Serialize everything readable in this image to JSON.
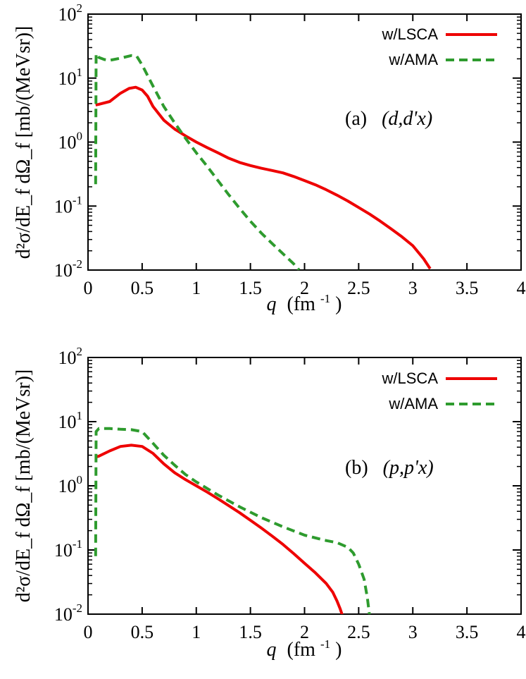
{
  "chart_data": [
    {
      "type": "line",
      "title": "",
      "annotation": {
        "prefix": "(a)",
        "reaction": "(d,d'x)"
      },
      "xlabel": {
        "symbol": "q",
        "unit_pre": "(fm",
        "unit_exp": "-1",
        "unit_post": ")"
      },
      "ylabel": {
        "text": "d²σ/dE_f dΩ_f [mb/(MeVsr)]"
      },
      "xlim": [
        0,
        4
      ],
      "ylim": [
        0.01,
        100
      ],
      "yscale": "log",
      "x_ticks": [
        "0",
        "0.5",
        "1",
        "1.5",
        "2",
        "2.5",
        "3",
        "3.5",
        "4"
      ],
      "x_tick_values": [
        0,
        0.5,
        1,
        1.5,
        2,
        2.5,
        3,
        3.5,
        4
      ],
      "y_ticks": [
        {
          "value": 100,
          "base": "10",
          "exp": "2"
        },
        {
          "value": 10,
          "base": "10",
          "exp": "1"
        },
        {
          "value": 1,
          "base": "10",
          "exp": "0"
        },
        {
          "value": 0.1,
          "base": "10",
          "exp": "-1"
        },
        {
          "value": 0.01,
          "base": "10",
          "exp": "-2"
        }
      ],
      "legend_position": "top-right",
      "grid": false,
      "series": [
        {
          "name": "w/LSCA",
          "color": "#ee0000",
          "style": "solid",
          "x": [
            0.07,
            0.1,
            0.2,
            0.3,
            0.38,
            0.44,
            0.5,
            0.55,
            0.6,
            0.7,
            0.8,
            0.9,
            1.0,
            1.1,
            1.2,
            1.3,
            1.4,
            1.5,
            1.6,
            1.7,
            1.8,
            1.9,
            2.0,
            2.1,
            2.2,
            2.3,
            2.4,
            2.5,
            2.6,
            2.7,
            2.8,
            2.9,
            3.0,
            3.1,
            3.16
          ],
          "y": [
            3.8,
            3.9,
            4.3,
            5.8,
            6.9,
            7.2,
            6.5,
            5.2,
            3.6,
            2.2,
            1.6,
            1.25,
            1.0,
            0.82,
            0.68,
            0.56,
            0.48,
            0.43,
            0.39,
            0.36,
            0.33,
            0.29,
            0.25,
            0.215,
            0.18,
            0.148,
            0.12,
            0.095,
            0.075,
            0.058,
            0.044,
            0.033,
            0.024,
            0.015,
            0.0105
          ]
        },
        {
          "name": "w/AMA",
          "color": "#2e9b2e",
          "style": "dashed",
          "x": [
            0.07,
            0.075,
            0.1,
            0.15,
            0.2,
            0.3,
            0.4,
            0.45,
            0.5,
            0.6,
            0.7,
            0.8,
            0.9,
            1.0,
            1.1,
            1.2,
            1.3,
            1.4,
            1.5,
            1.6,
            1.7,
            1.8,
            1.9,
            1.95
          ],
          "y": [
            0.22,
            24,
            21,
            19.5,
            19,
            20.5,
            22.5,
            22,
            16,
            7.5,
            3.6,
            2.0,
            1.15,
            0.68,
            0.42,
            0.25,
            0.15,
            0.092,
            0.058,
            0.038,
            0.026,
            0.018,
            0.0125,
            0.01
          ]
        }
      ]
    },
    {
      "type": "line",
      "title": "",
      "annotation": {
        "prefix": "(b)",
        "reaction": "(p,p'x)"
      },
      "xlabel": {
        "symbol": "q",
        "unit_pre": "(fm",
        "unit_exp": "-1",
        "unit_post": ")"
      },
      "ylabel": {
        "text": "d²σ/dE_f dΩ_f [mb/(MeVsr)]"
      },
      "xlim": [
        0,
        4
      ],
      "ylim": [
        0.01,
        100
      ],
      "yscale": "log",
      "x_ticks": [
        "0",
        "0.5",
        "1",
        "1.5",
        "2",
        "2.5",
        "3",
        "3.5",
        "4"
      ],
      "x_tick_values": [
        0,
        0.5,
        1,
        1.5,
        2,
        2.5,
        3,
        3.5,
        4
      ],
      "y_ticks": [
        {
          "value": 100,
          "base": "10",
          "exp": "2"
        },
        {
          "value": 10,
          "base": "10",
          "exp": "1"
        },
        {
          "value": 1,
          "base": "10",
          "exp": "0"
        },
        {
          "value": 0.1,
          "base": "10",
          "exp": "-1"
        },
        {
          "value": 0.01,
          "base": "10",
          "exp": "-2"
        }
      ],
      "legend_position": "top-right",
      "grid": false,
      "series": [
        {
          "name": "w/LSCA",
          "color": "#ee0000",
          "style": "solid",
          "x": [
            0.07,
            0.1,
            0.2,
            0.3,
            0.4,
            0.5,
            0.6,
            0.7,
            0.8,
            0.9,
            1.0,
            1.1,
            1.2,
            1.3,
            1.4,
            1.5,
            1.6,
            1.7,
            1.8,
            1.9,
            2.0,
            2.1,
            2.2,
            2.26,
            2.3,
            2.33,
            2.35
          ],
          "y": [
            2.8,
            2.9,
            3.5,
            4.1,
            4.3,
            4.1,
            3.2,
            2.2,
            1.6,
            1.25,
            1.0,
            0.8,
            0.63,
            0.49,
            0.38,
            0.29,
            0.22,
            0.165,
            0.122,
            0.088,
            0.062,
            0.044,
            0.03,
            0.022,
            0.016,
            0.012,
            0.0095
          ]
        },
        {
          "name": "w/AMA",
          "color": "#2e9b2e",
          "style": "dashed",
          "x": [
            0.07,
            0.075,
            0.1,
            0.2,
            0.3,
            0.4,
            0.5,
            0.6,
            0.7,
            0.8,
            0.9,
            1.0,
            1.2,
            1.4,
            1.6,
            1.8,
            2.0,
            2.2,
            2.3,
            2.4,
            2.45,
            2.5,
            2.55,
            2.58,
            2.6
          ],
          "y": [
            0.08,
            7,
            7.8,
            7.8,
            7.6,
            7.5,
            7.0,
            4.6,
            3.0,
            2.1,
            1.5,
            1.15,
            0.72,
            0.47,
            0.32,
            0.23,
            0.17,
            0.14,
            0.13,
            0.11,
            0.09,
            0.06,
            0.035,
            0.018,
            0.0095
          ]
        }
      ]
    }
  ]
}
